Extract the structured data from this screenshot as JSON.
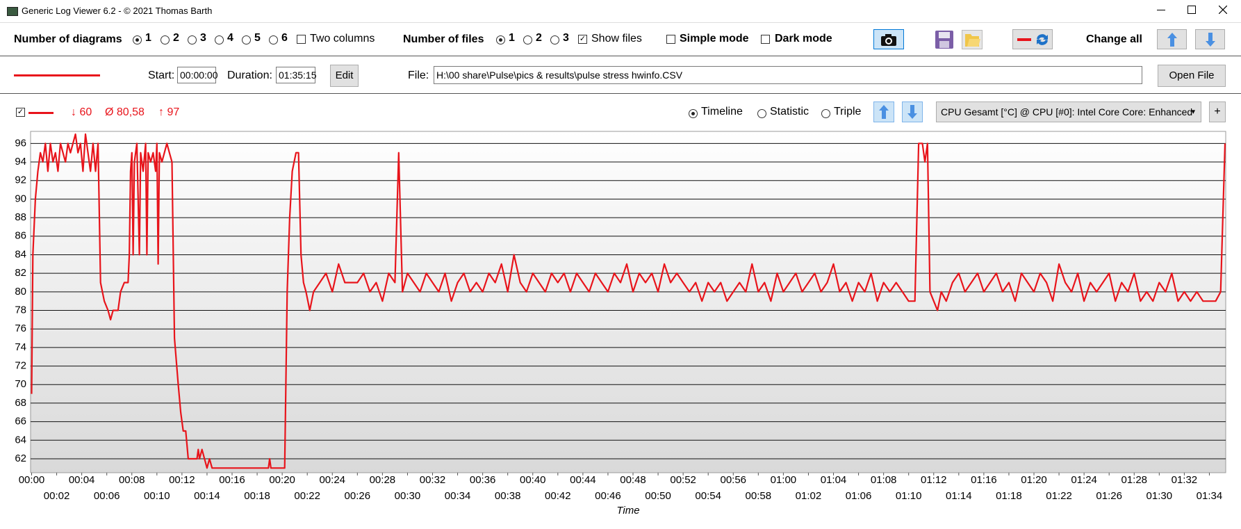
{
  "window": {
    "title": "Generic Log Viewer 6.2 - © 2021 Thomas Barth"
  },
  "toolbar": {
    "diagrams_label": "Number of diagrams",
    "diagram_options": [
      1,
      2,
      3,
      4,
      5,
      6
    ],
    "diagram_selected": 0,
    "two_columns": "Two columns",
    "files_label": "Number of files",
    "file_options": [
      1,
      2,
      3
    ],
    "file_selected": 0,
    "show_files": "Show files",
    "simple_mode": "Simple mode",
    "dark_mode": "Dark mode",
    "change_all": "Change all"
  },
  "file_row": {
    "start_label": "Start:",
    "start": "00:00:00",
    "duration_label": "Duration:",
    "duration": "01:35:15",
    "edit": "Edit",
    "file_label": "File:",
    "file": "H:\\00 share\\Pulse\\pics & results\\pulse stress hwinfo.CSV",
    "open_file": "Open File"
  },
  "chart_header": {
    "min": "↓ 60",
    "avg": "Ø 80,58",
    "max": "↑ 97",
    "view_options": [
      "Timeline",
      "Statistic",
      "Triple"
    ],
    "view_selected": 0,
    "sensor": "CPU Gesamt [°C] @ CPU [#0]: Intel Core Core: Enhanced",
    "add": "+"
  },
  "chart_data": {
    "type": "line",
    "xlabel": "Time",
    "x": [
      0,
      0.1,
      0.3,
      0.5,
      0.7,
      0.9,
      1.1,
      1.3,
      1.5,
      1.7,
      1.9,
      2.1,
      2.3,
      2.5,
      2.7,
      2.9,
      3.1,
      3.3,
      3.5,
      3.7,
      3.9,
      4.1,
      4.3,
      4.5,
      4.7,
      4.9,
      5.1,
      5.3,
      5.5,
      5.8,
      6.1,
      6.3,
      6.5,
      6.9,
      7.1,
      7.4,
      7.7,
      7.8,
      7.9,
      8.0,
      8.1,
      8.2,
      8.4,
      8.6,
      8.7,
      8.9,
      9.1,
      9.2,
      9.3,
      9.5,
      9.7,
      9.9,
      10.0,
      10.1,
      10.2,
      10.4,
      10.6,
      10.8,
      11.0,
      11.2,
      11.4,
      11.7,
      11.9,
      12.1,
      12.3,
      12.5,
      12.9,
      13.2,
      13.3,
      13.4,
      13.6,
      13.8,
      14.0,
      14.2,
      14.4,
      15,
      17,
      18.9,
      19,
      19.1,
      20.2,
      20.4,
      20.6,
      20.8,
      21.1,
      21.3,
      21.5,
      21.7,
      21.9,
      22.2,
      22.5,
      23,
      23.5,
      24,
      24.5,
      25,
      25.5,
      26,
      26.5,
      27,
      27.5,
      28,
      28.5,
      29,
      29.3,
      29.6,
      30,
      30.5,
      31,
      31.5,
      32,
      32.5,
      33,
      33.5,
      34,
      34.5,
      35,
      35.5,
      36,
      36.5,
      37,
      37.5,
      38,
      38.5,
      39,
      39.5,
      40,
      40.5,
      41,
      41.5,
      42,
      42.5,
      43,
      43.5,
      44,
      44.5,
      45,
      45.5,
      46,
      46.5,
      47,
      47.5,
      48,
      48.5,
      49,
      49.5,
      50,
      50.5,
      51,
      51.5,
      52,
      52.5,
      53,
      53.5,
      54,
      54.5,
      55,
      55.5,
      56,
      56.5,
      57,
      57.5,
      58,
      58.5,
      59,
      59.5,
      60,
      60.5,
      61,
      61.5,
      62,
      62.5,
      63,
      63.5,
      64,
      64.5,
      65,
      65.5,
      66,
      66.5,
      67,
      67.5,
      68,
      68.5,
      69,
      69.5,
      70,
      70.5,
      70.8,
      71.1,
      71.3,
      71.5,
      71.7,
      72,
      72.3,
      72.6,
      73,
      73.5,
      74,
      74.5,
      75,
      75.5,
      76,
      76.5,
      77,
      77.5,
      78,
      78.5,
      79,
      79.5,
      80,
      80.5,
      81,
      81.5,
      82,
      82.5,
      83,
      83.5,
      84,
      84.5,
      85,
      85.5,
      86,
      86.5,
      87,
      87.5,
      88,
      88.5,
      89,
      89.5,
      90,
      90.5,
      91,
      91.5,
      92,
      92.5,
      93,
      93.5,
      94,
      94.5,
      94.9,
      95.25
    ],
    "series": [
      {
        "color": "#e8141b",
        "values": [
          69,
          84,
          90,
          93,
          95,
          94,
          96,
          93,
          96,
          94,
          95,
          93,
          96,
          95,
          94,
          96,
          95,
          96,
          97,
          95,
          96,
          93,
          97,
          95,
          93,
          96,
          93,
          96,
          81,
          79,
          78,
          77,
          78,
          78,
          80,
          81,
          81,
          84,
          93,
          95,
          84,
          94,
          96,
          84,
          95,
          93,
          96,
          84,
          95,
          94,
          95,
          93,
          96,
          83,
          95,
          94,
          95,
          96,
          95,
          94,
          75,
          70,
          67,
          65,
          65,
          62,
          62,
          62,
          63,
          62,
          63,
          62,
          61,
          62,
          61,
          61,
          61,
          61,
          62,
          61,
          61,
          80,
          88,
          93,
          95,
          95,
          84,
          81,
          80,
          78,
          80,
          81,
          82,
          80,
          83,
          81,
          81,
          81,
          82,
          80,
          81,
          79,
          82,
          81,
          95,
          80,
          82,
          81,
          80,
          82,
          81,
          80,
          82,
          79,
          81,
          82,
          80,
          81,
          80,
          82,
          81,
          83,
          80,
          84,
          81,
          80,
          82,
          81,
          80,
          82,
          81,
          82,
          80,
          82,
          81,
          80,
          82,
          81,
          80,
          82,
          81,
          83,
          80,
          82,
          81,
          82,
          80,
          83,
          81,
          82,
          81,
          80,
          81,
          79,
          81,
          80,
          81,
          79,
          80,
          81,
          80,
          83,
          80,
          81,
          79,
          82,
          80,
          81,
          82,
          80,
          81,
          82,
          80,
          81,
          83,
          80,
          81,
          79,
          81,
          80,
          82,
          79,
          81,
          80,
          81,
          80,
          79,
          79,
          96,
          96,
          94,
          96,
          80,
          79,
          78,
          80,
          79,
          81,
          82,
          80,
          81,
          82,
          80,
          81,
          82,
          80,
          81,
          79,
          82,
          81,
          80,
          82,
          81,
          79,
          83,
          81,
          80,
          82,
          79,
          81,
          80,
          81,
          82,
          79,
          81,
          80,
          82,
          79,
          80,
          79,
          81,
          80,
          82,
          79,
          80,
          79,
          80,
          79,
          79,
          79,
          80,
          96
        ]
      }
    ],
    "xlim": [
      0,
      95.25
    ],
    "ylim": [
      60.5,
      97.3
    ],
    "xticks": [
      {
        "value": 0,
        "label": "00:00"
      },
      {
        "value": 2,
        "label": "00:02"
      },
      {
        "value": 4,
        "label": "00:04"
      },
      {
        "value": 6,
        "label": "00:06"
      },
      {
        "value": 8,
        "label": "00:08"
      },
      {
        "value": 10,
        "label": "00:10"
      },
      {
        "value": 12,
        "label": "00:12"
      },
      {
        "value": 14,
        "label": "00:14"
      },
      {
        "value": 16,
        "label": "00:16"
      },
      {
        "value": 18,
        "label": "00:18"
      },
      {
        "value": 20,
        "label": "00:20"
      },
      {
        "value": 22,
        "label": "00:22"
      },
      {
        "value": 24,
        "label": "00:24"
      },
      {
        "value": 26,
        "label": "00:26"
      },
      {
        "value": 28,
        "label": "00:28"
      },
      {
        "value": 30,
        "label": "00:30"
      },
      {
        "value": 32,
        "label": "00:32"
      },
      {
        "value": 34,
        "label": "00:34"
      },
      {
        "value": 36,
        "label": "00:36"
      },
      {
        "value": 38,
        "label": "00:38"
      },
      {
        "value": 40,
        "label": "00:40"
      },
      {
        "value": 42,
        "label": "00:42"
      },
      {
        "value": 44,
        "label": "00:44"
      },
      {
        "value": 46,
        "label": "00:46"
      },
      {
        "value": 48,
        "label": "00:48"
      },
      {
        "value": 50,
        "label": "00:50"
      },
      {
        "value": 52,
        "label": "00:52"
      },
      {
        "value": 54,
        "label": "00:54"
      },
      {
        "value": 56,
        "label": "00:56"
      },
      {
        "value": 58,
        "label": "00:58"
      },
      {
        "value": 60,
        "label": "01:00"
      },
      {
        "value": 62,
        "label": "01:02"
      },
      {
        "value": 64,
        "label": "01:04"
      },
      {
        "value": 66,
        "label": "01:06"
      },
      {
        "value": 68,
        "label": "01:08"
      },
      {
        "value": 70,
        "label": "01:10"
      },
      {
        "value": 72,
        "label": "01:12"
      },
      {
        "value": 74,
        "label": "01:14"
      },
      {
        "value": 76,
        "label": "01:16"
      },
      {
        "value": 78,
        "label": "01:18"
      },
      {
        "value": 80,
        "label": "01:20"
      },
      {
        "value": 82,
        "label": "01:22"
      },
      {
        "value": 84,
        "label": "01:24"
      },
      {
        "value": 86,
        "label": "01:26"
      },
      {
        "value": 88,
        "label": "01:28"
      },
      {
        "value": 90,
        "label": "01:30"
      },
      {
        "value": 92,
        "label": "01:32"
      },
      {
        "value": 94,
        "label": "01:34"
      }
    ],
    "yticks": [
      62,
      64,
      66,
      68,
      70,
      72,
      74,
      76,
      78,
      80,
      82,
      84,
      86,
      88,
      90,
      92,
      94,
      96
    ]
  }
}
